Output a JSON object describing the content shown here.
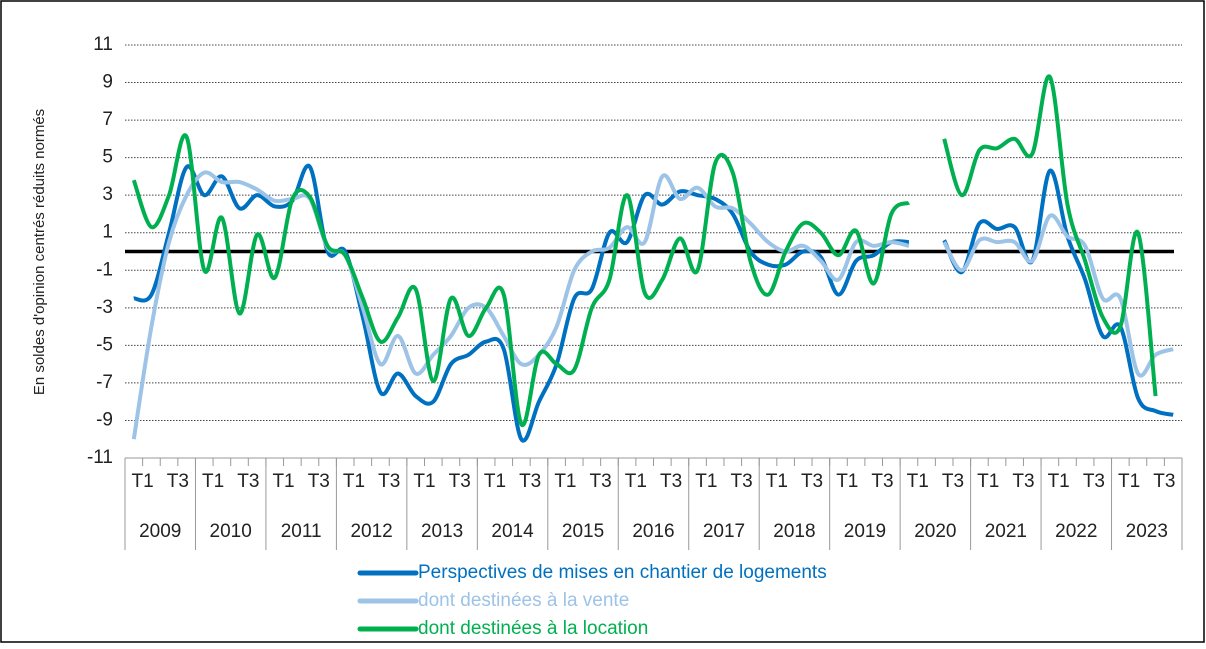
{
  "chart_data": {
    "type": "line",
    "y_axis_label": "En soldes d'opinion centrés réduits normés",
    "categories": [
      "T1",
      null,
      "T3",
      null,
      "T1",
      null,
      "T3",
      null,
      "T1",
      null,
      "T3",
      null,
      "T1",
      null,
      "T3",
      null,
      "T1",
      null,
      "T3",
      null,
      "T1",
      null,
      "T3",
      null,
      "T1",
      null,
      "T3",
      null,
      "T1",
      null,
      "T3",
      null,
      "T1",
      null,
      "T3",
      null,
      "T1",
      null,
      "T3",
      null,
      "T1",
      null,
      "T3",
      null,
      "T1",
      null,
      "T3",
      null,
      "T1",
      null,
      "T3",
      null,
      "T1",
      null,
      "T3",
      null,
      "T1",
      null,
      "T3",
      null
    ],
    "years": [
      "2009",
      "2010",
      "2011",
      "2012",
      "2013",
      "2014",
      "2015",
      "2016",
      "2017",
      "2018",
      "2019",
      "2020",
      "2021",
      "2022",
      "2023"
    ],
    "series": [
      {
        "name": "Perspectives de mises en chantier de logements",
        "color": "#0070c0",
        "values": [
          -2.5,
          -2.3,
          1,
          4.5,
          3.0,
          4.0,
          2.3,
          3.0,
          2.4,
          2.7,
          4.5,
          0.0,
          0.0,
          -3.5,
          -7.5,
          -6.5,
          -7.7,
          -8.0,
          -6.0,
          -5.5,
          -4.8,
          -5.2,
          -10.0,
          -8.0,
          -6.0,
          -2.5,
          -2.0,
          1.0,
          0.5,
          3.0,
          2.5,
          3.2,
          3.0,
          2.8,
          2.0,
          0.0,
          -0.7,
          -0.7,
          0.0,
          -0.3,
          -2.3,
          -0.5,
          -0.2,
          0.5,
          0.5,
          null,
          0.6,
          -1.1,
          1.5,
          1.2,
          1.3,
          -0.5,
          4.3,
          0.8,
          -1.5,
          -4.5,
          -4.0,
          -7.8,
          -8.5,
          -8.7
        ]
      },
      {
        "name": "dont destinées à la vente",
        "color": "#9dc3e6",
        "values": [
          -10,
          -4,
          0.5,
          3,
          4.2,
          3.7,
          3.7,
          3.3,
          2.7,
          2.8,
          2.8,
          0.2,
          -0.2,
          -3.0,
          -6.0,
          -4.5,
          -6.5,
          -5.5,
          -4.5,
          -3.0,
          -3.0,
          -4.5,
          -6.0,
          -5.5,
          -4.0,
          -1.0,
          0.0,
          0.2,
          1.3,
          0.5,
          4.0,
          2.8,
          3.4,
          2.4,
          2.3,
          1.5,
          0.5,
          0.0,
          0.3,
          -0.5,
          -1.5,
          0.5,
          0.3,
          0.5,
          0.3,
          null,
          0.5,
          -1.0,
          0.6,
          0.5,
          0.5,
          -0.5,
          1.9,
          0.8,
          0.3,
          -2.5,
          -2.5,
          -6.5,
          -5.5,
          -5.2
        ]
      },
      {
        "name": "dont destinées à la location",
        "color": "#00b050",
        "values": [
          3.8,
          1.3,
          3.0,
          6.1,
          -1.0,
          1.8,
          -3.3,
          0.9,
          -1.4,
          2.8,
          2.9,
          0.3,
          -0.2,
          -2.5,
          -4.8,
          -3.5,
          -2.0,
          -6.9,
          -2.5,
          -4.5,
          -3.0,
          -2.3,
          -9.2,
          -5.5,
          -6.0,
          -6.3,
          -3.0,
          -1.5,
          3.0,
          -2.2,
          -1.5,
          0.7,
          -1.0,
          4.7,
          4.2,
          -0.5,
          -2.3,
          0.0,
          1.5,
          1.0,
          -0.2,
          1.1,
          -1.7,
          2.0,
          2.6,
          null,
          6.0,
          3.0,
          5.4,
          5.5,
          6.0,
          5.2,
          9.3,
          2.5,
          -0.5,
          -3.5,
          -4.0,
          1.0,
          -7.7,
          null
        ]
      }
    ],
    "reference_line": 0,
    "ylim": [
      -11,
      11
    ],
    "yticks": [
      -11,
      -9,
      -7,
      -5,
      -3,
      -1,
      1,
      3,
      5,
      7,
      9,
      11
    ],
    "grid": true
  }
}
